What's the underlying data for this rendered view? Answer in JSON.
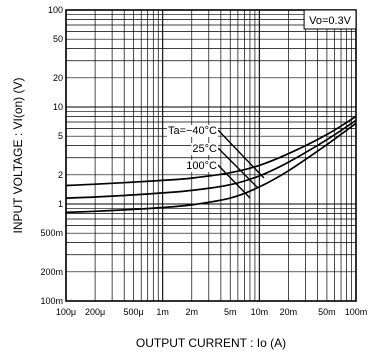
{
  "chart_data": {
    "type": "line",
    "title": "",
    "xlabel": "OUTPUT  CURRENT : Io (A)",
    "ylabel": "INPUT  VOLTAGE : VI(on) (V)",
    "x_scale": "log",
    "y_scale": "log",
    "xlim": [
      0.0001,
      0.1
    ],
    "ylim": [
      0.1,
      100
    ],
    "x_ticks": [
      {
        "value": 0.0001,
        "label": "100μ"
      },
      {
        "value": 0.0002,
        "label": "200μ"
      },
      {
        "value": 0.0005,
        "label": "500μ"
      },
      {
        "value": 0.001,
        "label": "1m"
      },
      {
        "value": 0.002,
        "label": "2m"
      },
      {
        "value": 0.005,
        "label": "5m"
      },
      {
        "value": 0.01,
        "label": "10m"
      },
      {
        "value": 0.02,
        "label": "20m"
      },
      {
        "value": 0.05,
        "label": "50m"
      },
      {
        "value": 0.1,
        "label": "100m"
      }
    ],
    "y_ticks": [
      {
        "value": 100,
        "label": "100"
      },
      {
        "value": 50,
        "label": "50"
      },
      {
        "value": 20,
        "label": "20"
      },
      {
        "value": 10,
        "label": "10"
      },
      {
        "value": 5,
        "label": "5"
      },
      {
        "value": 2,
        "label": "2"
      },
      {
        "value": 1,
        "label": "1"
      },
      {
        "value": 0.5,
        "label": "500m"
      },
      {
        "value": 0.2,
        "label": "200m"
      },
      {
        "value": 0.1,
        "label": "100m"
      }
    ],
    "grid": true,
    "condition": "Vo=0.3V",
    "series": [
      {
        "name": "Ta=−40°C",
        "x": [
          0.0001,
          0.0002,
          0.0005,
          0.001,
          0.002,
          0.005,
          0.01,
          0.02,
          0.05,
          0.1
        ],
        "y": [
          1.55,
          1.6,
          1.68,
          1.75,
          1.85,
          2.1,
          2.5,
          3.3,
          5.2,
          8.0
        ]
      },
      {
        "name": "25°C",
        "x": [
          0.0001,
          0.0002,
          0.0005,
          0.001,
          0.002,
          0.005,
          0.01,
          0.02,
          0.05,
          0.1
        ],
        "y": [
          1.15,
          1.18,
          1.24,
          1.3,
          1.38,
          1.58,
          1.95,
          2.7,
          4.6,
          7.3
        ]
      },
      {
        "name": "100°C",
        "x": [
          0.0001,
          0.0002,
          0.0005,
          0.001,
          0.002,
          0.005,
          0.01,
          0.02,
          0.05,
          0.1
        ],
        "y": [
          0.82,
          0.84,
          0.88,
          0.92,
          0.98,
          1.15,
          1.5,
          2.2,
          4.1,
          6.8
        ]
      }
    ]
  }
}
